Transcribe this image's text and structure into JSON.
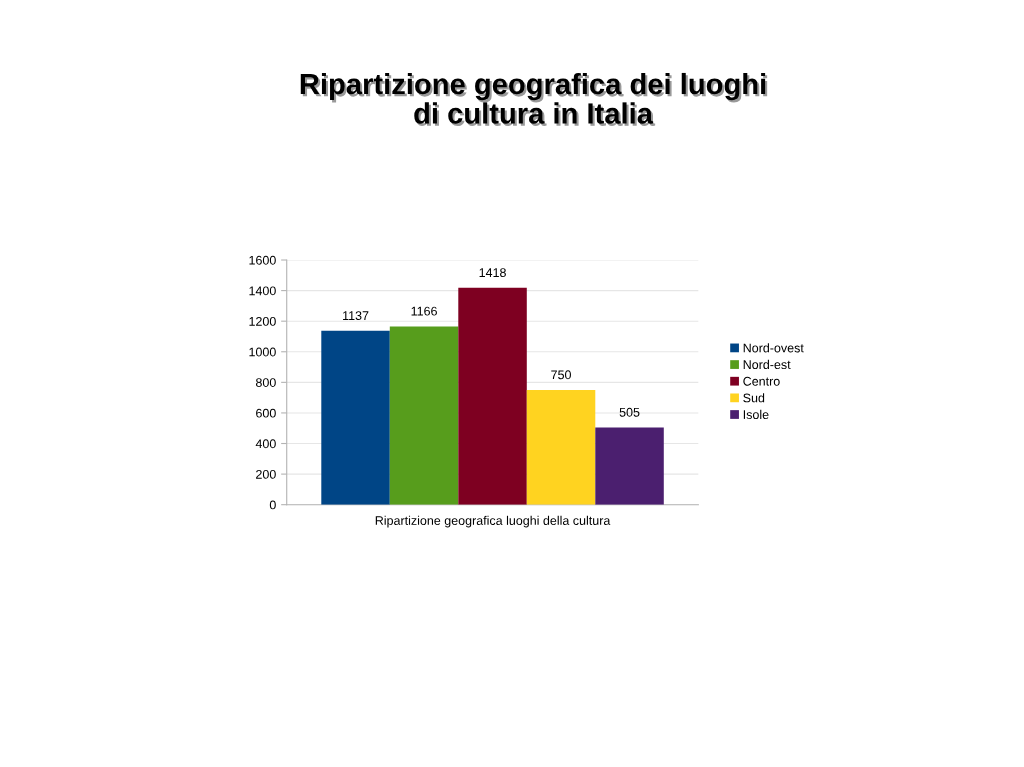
{
  "chart_data": {
    "type": "bar",
    "title": "Ripartizione geografica dei luoghi\ndi cultura in Italia",
    "categories": [
      "Ripartizione geografica luoghi della cultura"
    ],
    "series": [
      {
        "name": "Nord-ovest",
        "color": "#004586",
        "values": [
          1137
        ]
      },
      {
        "name": "Nord-est",
        "color": "#579d1c",
        "values": [
          1166
        ]
      },
      {
        "name": "Centro",
        "color": "#7e0021",
        "values": [
          1418
        ]
      },
      {
        "name": "Sud",
        "color": "#ffd320",
        "values": [
          750
        ]
      },
      {
        "name": "Isole",
        "color": "#4b1f6f",
        "values": [
          505
        ]
      }
    ],
    "ylim": [
      0,
      1600
    ],
    "yticks": [
      0,
      200,
      400,
      600,
      800,
      1000,
      1200,
      1400,
      1600
    ],
    "grid": "y",
    "legend": "right",
    "data_labels": true
  }
}
